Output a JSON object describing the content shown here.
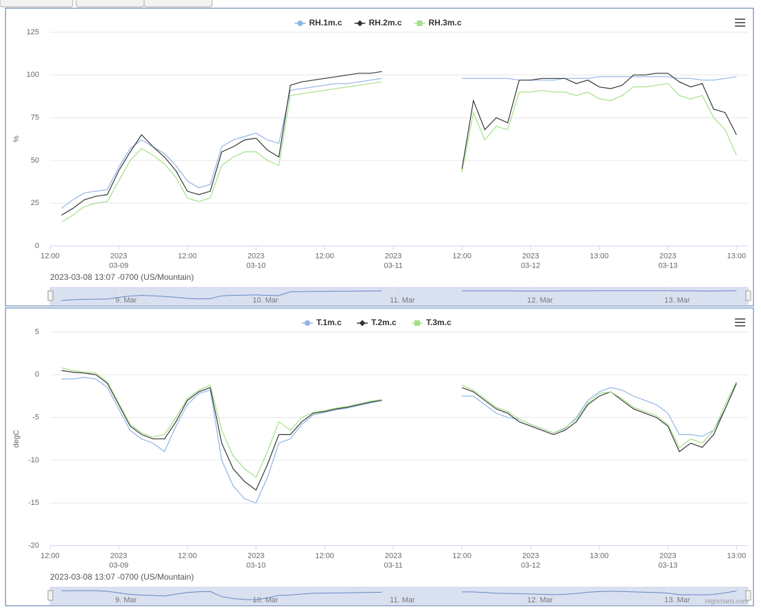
{
  "chart_data": [
    {
      "type": "line",
      "y_label": "%",
      "caption": "2023-03-08 13:07 -0700 (US/Mountain)",
      "xlim": [
        0,
        122
      ],
      "xticks": [
        {
          "value": 0,
          "label": "12:00"
        },
        {
          "value": 12,
          "label": "2023\n03-09"
        },
        {
          "value": 24,
          "label": "12:00"
        },
        {
          "value": 36,
          "label": "2023\n03-10"
        },
        {
          "value": 48,
          "label": "12:00"
        },
        {
          "value": 60,
          "label": "2023\n03-11"
        },
        {
          "value": 72,
          "label": "12:00"
        },
        {
          "value": 84,
          "label": "2023\n03-12"
        },
        {
          "value": 96,
          "label": "13:00"
        },
        {
          "value": 108,
          "label": "2023\n03-13"
        },
        {
          "value": 120,
          "label": "13:00"
        }
      ],
      "ylim": [
        0,
        125
      ],
      "yticks": [
        0,
        25,
        50,
        75,
        100,
        125
      ],
      "grid": true,
      "navigator_series": 0,
      "navigator_ticks": [
        {
          "value": 12,
          "label": "9. Mar"
        },
        {
          "value": 36,
          "label": "10. Mar"
        },
        {
          "value": 60,
          "label": "11. Mar"
        },
        {
          "value": 84,
          "label": "12. Mar"
        },
        {
          "value": 108,
          "label": "13. Mar"
        }
      ],
      "x": [
        2,
        4,
        6,
        8,
        10,
        12,
        14,
        16,
        18,
        20,
        22,
        24,
        26,
        28,
        30,
        32,
        34,
        36,
        38,
        40,
        42,
        44,
        46,
        48,
        50,
        52,
        54,
        56,
        58,
        60,
        72,
        74,
        76,
        78,
        80,
        82,
        84,
        86,
        88,
        90,
        92,
        94,
        96,
        98,
        100,
        102,
        104,
        106,
        108,
        110,
        112,
        114,
        116,
        118,
        120
      ],
      "series": [
        {
          "name": "RH.1m.c",
          "color": "#8fb3e6",
          "symbol": "circle",
          "values": [
            22,
            27,
            31,
            32,
            33,
            46,
            57,
            62,
            58,
            54,
            47,
            38,
            34,
            36,
            58,
            62,
            64,
            66,
            62,
            60,
            91,
            92,
            93,
            94,
            95,
            95,
            96,
            97,
            98,
            null,
            98,
            98,
            98,
            98,
            98,
            97,
            97,
            97,
            97,
            98,
            98,
            98,
            99,
            99,
            99,
            99,
            99,
            99,
            99,
            98,
            98,
            97,
            97,
            98,
            99
          ]
        },
        {
          "name": "RH.2m.c",
          "color": "#333333",
          "symbol": "diamond",
          "values": [
            18,
            22,
            27,
            29,
            30,
            44,
            55,
            65,
            58,
            52,
            44,
            32,
            30,
            32,
            55,
            58,
            62,
            63,
            56,
            52,
            94,
            96,
            97,
            98,
            99,
            100,
            101,
            101,
            102,
            null,
            45,
            85,
            68,
            75,
            72,
            97,
            97,
            98,
            98,
            98,
            95,
            97,
            93,
            92,
            94,
            100,
            100,
            101,
            101,
            96,
            93,
            95,
            80,
            78,
            65
          ]
        },
        {
          "name": "RH.3m.c",
          "color": "#a3e086",
          "symbol": "square",
          "values": [
            14,
            18,
            23,
            25,
            26,
            38,
            50,
            57,
            53,
            48,
            40,
            28,
            26,
            28,
            47,
            52,
            55,
            55,
            50,
            47,
            88,
            89,
            90,
            91,
            92,
            93,
            94,
            95,
            96,
            null,
            43,
            78,
            62,
            70,
            68,
            90,
            90,
            91,
            90,
            90,
            88,
            90,
            86,
            85,
            88,
            93,
            93,
            94,
            95,
            88,
            86,
            88,
            75,
            68,
            53
          ]
        }
      ]
    },
    {
      "type": "line",
      "y_label": "degC",
      "caption": "2023-03-08 13:07 -0700 (US/Mountain)",
      "credit": "Highcharts.com",
      "xlim": [
        0,
        122
      ],
      "xticks": [
        {
          "value": 0,
          "label": "12:00"
        },
        {
          "value": 12,
          "label": "2023\n03-09"
        },
        {
          "value": 24,
          "label": "12:00"
        },
        {
          "value": 36,
          "label": "2023\n03-10"
        },
        {
          "value": 48,
          "label": "12:00"
        },
        {
          "value": 60,
          "label": "2023\n03-11"
        },
        {
          "value": 72,
          "label": "12:00"
        },
        {
          "value": 84,
          "label": "2023\n03-12"
        },
        {
          "value": 96,
          "label": "13:00"
        },
        {
          "value": 108,
          "label": "2023\n03-13"
        },
        {
          "value": 120,
          "label": "13:00"
        }
      ],
      "ylim": [
        -20,
        5
      ],
      "yticks": [
        -20,
        -15,
        -10,
        -5,
        0,
        5
      ],
      "grid": true,
      "navigator_series": 0,
      "navigator_ticks": [
        {
          "value": 12,
          "label": "9. Mar"
        },
        {
          "value": 36,
          "label": "10. Mar"
        },
        {
          "value": 60,
          "label": "11. Mar"
        },
        {
          "value": 84,
          "label": "12. Mar"
        },
        {
          "value": 108,
          "label": "13. Mar"
        }
      ],
      "x": [
        2,
        4,
        6,
        8,
        10,
        12,
        14,
        16,
        18,
        20,
        22,
        24,
        26,
        28,
        30,
        32,
        34,
        36,
        38,
        40,
        42,
        44,
        46,
        48,
        50,
        52,
        54,
        56,
        58,
        60,
        72,
        74,
        76,
        78,
        80,
        82,
        84,
        86,
        88,
        90,
        92,
        94,
        96,
        98,
        100,
        102,
        104,
        106,
        108,
        110,
        112,
        114,
        116,
        118,
        120
      ],
      "series": [
        {
          "name": "T.1m.c",
          "color": "#8fb3e6",
          "symbol": "circle",
          "values": [
            -0.5,
            -0.5,
            -0.3,
            -0.5,
            -1.5,
            -4,
            -6.5,
            -7.5,
            -8,
            -9,
            -6,
            -3.5,
            -2.2,
            -1.8,
            -10,
            -13,
            -14.5,
            -15,
            -12,
            -8,
            -7.5,
            -5.8,
            -4.7,
            -4.4,
            -4.1,
            -3.9,
            -3.6,
            -3.3,
            -3,
            null,
            -2.5,
            -2.5,
            -3.5,
            -4.5,
            -5,
            -5.2,
            -5.8,
            -6.3,
            -6.8,
            -6.3,
            -5,
            -3,
            -2,
            -1.5,
            -1.8,
            -2.5,
            -3,
            -3.5,
            -4.5,
            -7,
            -7,
            -7.2,
            -6.5,
            -4,
            -1
          ]
        },
        {
          "name": "T.2m.c",
          "color": "#333333",
          "symbol": "diamond",
          "values": [
            0.5,
            0.3,
            0.2,
            0,
            -1,
            -3.5,
            -6,
            -7,
            -7.5,
            -7.5,
            -5.5,
            -3,
            -2,
            -1.5,
            -8,
            -11,
            -12.5,
            -13.5,
            -10.5,
            -7,
            -7,
            -5.5,
            -4.5,
            -4.3,
            -4,
            -3.8,
            -3.5,
            -3.2,
            -3,
            null,
            -1.5,
            -2,
            -3,
            -4,
            -4.5,
            -5.5,
            -6,
            -6.5,
            -7,
            -6.5,
            -5.5,
            -3.5,
            -2.5,
            -2,
            -3,
            -4,
            -4.5,
            -5,
            -6,
            -9,
            -8,
            -8.5,
            -7,
            -4,
            -1
          ]
        },
        {
          "name": "T.3m.c",
          "color": "#a3e086",
          "symbol": "square",
          "values": [
            0.8,
            0.5,
            0.3,
            0.2,
            -0.8,
            -3.3,
            -5.8,
            -6.8,
            -7.3,
            -7,
            -5,
            -2.8,
            -1.8,
            -1.2,
            -6.5,
            -9.5,
            -11,
            -12,
            -9,
            -5.5,
            -6.5,
            -5,
            -4.4,
            -4.2,
            -3.9,
            -3.7,
            -3.4,
            -3.1,
            -2.9,
            null,
            -1.2,
            -1.8,
            -2.8,
            -3.8,
            -4.3,
            -5.2,
            -5.8,
            -6.3,
            -6.8,
            -6.2,
            -5.2,
            -3.3,
            -2.2,
            -2,
            -2.8,
            -3.8,
            -4.3,
            -4.8,
            -5.8,
            -8.5,
            -7.5,
            -8,
            -6.5,
            -3.5,
            -0.8
          ]
        }
      ]
    }
  ]
}
